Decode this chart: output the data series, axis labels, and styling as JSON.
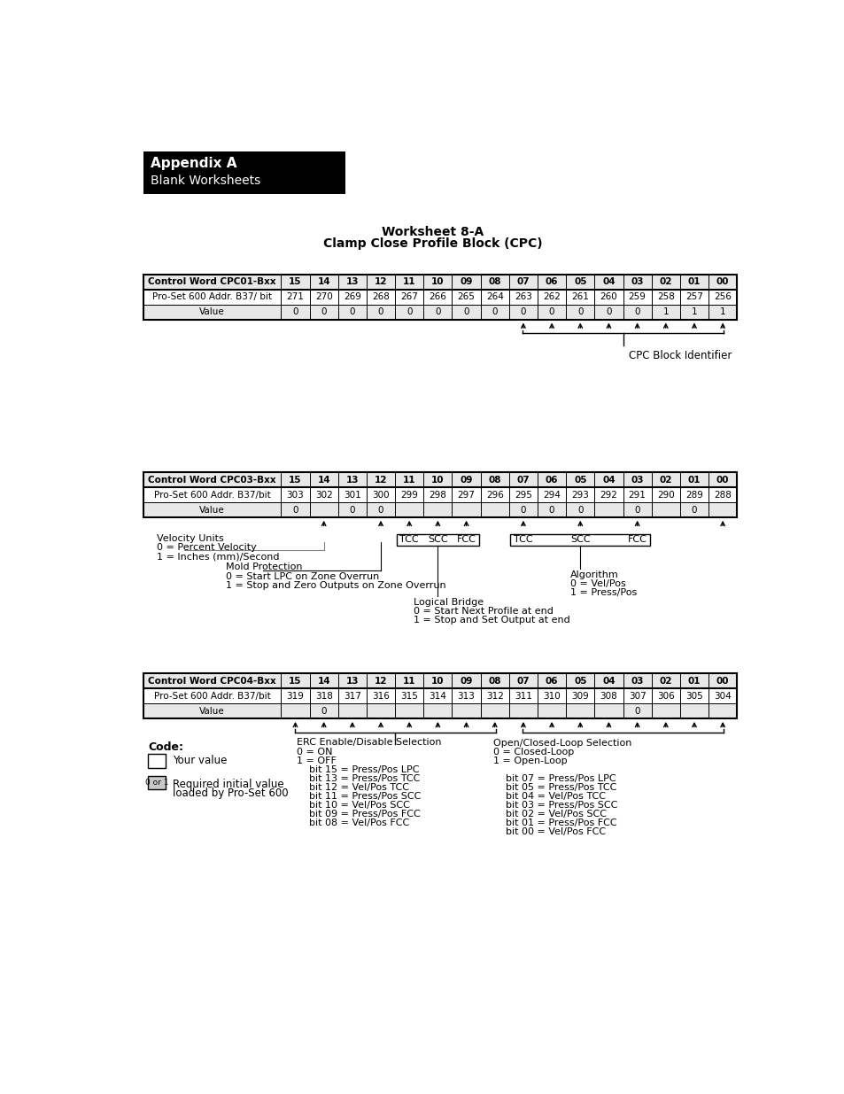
{
  "title1": "Appendix A",
  "title2": "Blank Worksheets",
  "worksheet_title1": "Worksheet 8-A",
  "worksheet_title2": "Clamp Close Profile Block (CPC)",
  "table1_header": [
    "Control Word CPC01-Bxx",
    "15",
    "14",
    "13",
    "12",
    "11",
    "10",
    "09",
    "08",
    "07",
    "06",
    "05",
    "04",
    "03",
    "02",
    "01",
    "00"
  ],
  "table1_row2": [
    "Pro-Set 600 Addr. B37/ bit",
    "271",
    "270",
    "269",
    "268",
    "267",
    "266",
    "265",
    "264",
    "263",
    "262",
    "261",
    "260",
    "259",
    "258",
    "257",
    "256"
  ],
  "table1_row3": [
    "Value",
    "0",
    "0",
    "0",
    "0",
    "0",
    "0",
    "0",
    "0",
    "0",
    "0",
    "0",
    "0",
    "0",
    "1",
    "1",
    "1"
  ],
  "table1_annotation": "CPC Block Identifier",
  "table2_header": [
    "Control Word CPC03-Bxx",
    "15",
    "14",
    "13",
    "12",
    "11",
    "10",
    "09",
    "08",
    "07",
    "06",
    "05",
    "04",
    "03",
    "02",
    "01",
    "00"
  ],
  "table2_row2": [
    "Pro-Set 600 Addr. B37/bit",
    "303",
    "302",
    "301",
    "300",
    "299",
    "298",
    "297",
    "296",
    "295",
    "294",
    "293",
    "292",
    "291",
    "290",
    "289",
    "288"
  ],
  "table2_row3": [
    "Value",
    "0",
    "",
    "0",
    "0",
    "",
    "",
    "",
    "",
    "0",
    "0",
    "0",
    "",
    "0",
    "",
    "0",
    ""
  ],
  "table3_header": [
    "Control Word CPC04-Bxx",
    "15",
    "14",
    "13",
    "12",
    "11",
    "10",
    "09",
    "08",
    "07",
    "06",
    "05",
    "04",
    "03",
    "02",
    "01",
    "00"
  ],
  "table3_row2": [
    "Pro-Set 600 Addr. B37/bit",
    "319",
    "318",
    "317",
    "316",
    "315",
    "314",
    "313",
    "312",
    "311",
    "310",
    "309",
    "308",
    "307",
    "306",
    "305",
    "304"
  ],
  "table3_row3": [
    "Value",
    "",
    "0",
    "",
    "",
    "",
    "",
    "",
    "",
    "",
    "",
    "",
    "",
    "0",
    "",
    "",
    ""
  ],
  "bg_color": "#ffffff",
  "border_color": "#000000"
}
